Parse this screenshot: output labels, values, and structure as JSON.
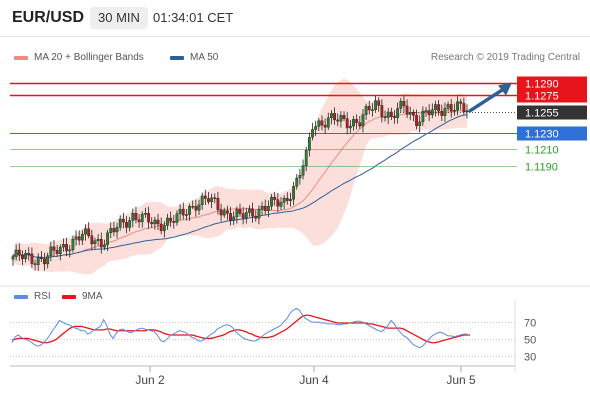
{
  "header": {
    "pair": "EUR/USD",
    "timeframe": "30 MIN",
    "time": "01:34:01 CET"
  },
  "legend": {
    "ma20": "MA 20 + Bollinger Bands",
    "ma50": "MA 50",
    "credit": "Research © 2019 Trading Central",
    "rsi": "RSI",
    "ma9": "9MA"
  },
  "colors": {
    "red_level": "#e8141b",
    "blue_level": "#2e6fd8",
    "green_level": "#2f9e2f",
    "current": "#333333",
    "bollinger": "#f8b9b0",
    "ma20": "#f08a80",
    "ma50": "#2f5f99",
    "up_candle": "#2e7d32",
    "down_candle": "#b71c1c",
    "rsi": "#5c8de0",
    "ma9": "#e8141b",
    "arrow": "#2f5f99"
  },
  "chart_data": [
    {
      "type": "candlestick",
      "ylim": [
        1.1065,
        1.1305
      ],
      "x_tick_labels": [
        "Jun 2",
        "Jun 4",
        "Jun 5"
      ],
      "levels": [
        {
          "value": 1.129,
          "label": "1.1290",
          "style": "resistance-red"
        },
        {
          "value": 1.1275,
          "label": "1.1275",
          "style": "resistance-red"
        },
        {
          "value": 1.1255,
          "label": "1.1255",
          "style": "current-price"
        },
        {
          "value": 1.123,
          "label": "1.1230",
          "style": "pivot-blue"
        },
        {
          "value": 1.121,
          "label": "1.1210",
          "style": "support-green"
        },
        {
          "value": 1.119,
          "label": "1.1190",
          "style": "support-green"
        }
      ],
      "series": [
        {
          "name": "MA 20 + Bollinger Bands",
          "type": "band"
        },
        {
          "name": "MA 50",
          "type": "line"
        }
      ]
    },
    {
      "type": "line",
      "ylim": [
        20,
        90
      ],
      "y_ticks": [
        70,
        50,
        30
      ],
      "series": [
        {
          "name": "RSI",
          "values": [
            46,
            53,
            55,
            52,
            50,
            49,
            47,
            44,
            42,
            43,
            46,
            50,
            55,
            61,
            66,
            72,
            70,
            68,
            67,
            65,
            63,
            62,
            60,
            60,
            56,
            58,
            61,
            63,
            65,
            73,
            66,
            56,
            51,
            57,
            61,
            62,
            60,
            58,
            58,
            60,
            62,
            63,
            62,
            61,
            60,
            59,
            55,
            49,
            47,
            50,
            54,
            56,
            58,
            60,
            59,
            58,
            55,
            52,
            51,
            48,
            48,
            50,
            53,
            56,
            58,
            62,
            64,
            66,
            67,
            66,
            63,
            58,
            55,
            52,
            50,
            49,
            48,
            48,
            50,
            53,
            56,
            58,
            60,
            62,
            64,
            66,
            70,
            74,
            80,
            84,
            86,
            84,
            78,
            74,
            72,
            70,
            70,
            70,
            69,
            69,
            68,
            68,
            68,
            67,
            67,
            68,
            68,
            69,
            70,
            71,
            71,
            70,
            68,
            66,
            64,
            62,
            60,
            59,
            62,
            66,
            72,
            68,
            62,
            58,
            54,
            52,
            48,
            44,
            42,
            40,
            42,
            46,
            50,
            54,
            56,
            58,
            58,
            56,
            54,
            54,
            53,
            54,
            55,
            56,
            56,
            54
          ]
        },
        {
          "name": "9MA",
          "values": [
            49,
            50,
            51,
            51,
            51,
            51,
            50,
            49,
            48,
            47,
            46,
            46,
            47,
            48,
            50,
            53,
            56,
            59,
            62,
            64,
            65,
            65,
            65,
            64,
            63,
            62,
            61,
            61,
            61,
            61,
            62,
            62,
            61,
            60,
            60,
            60,
            60,
            60,
            60,
            60,
            60,
            60,
            60,
            61,
            61,
            61,
            60,
            59,
            57,
            56,
            55,
            55,
            55,
            55,
            55,
            55,
            55,
            55,
            54,
            53,
            52,
            51,
            51,
            51,
            52,
            53,
            54,
            55,
            57,
            59,
            60,
            61,
            61,
            60,
            59,
            57,
            56,
            54,
            53,
            52,
            52,
            52,
            53,
            54,
            56,
            58,
            60,
            62,
            65,
            68,
            71,
            74,
            77,
            78,
            78,
            77,
            76,
            75,
            74,
            73,
            72,
            71,
            70,
            69,
            69,
            69,
            69,
            69,
            69,
            69,
            69,
            69,
            69,
            68,
            68,
            67,
            66,
            65,
            64,
            63,
            63,
            63,
            63,
            63,
            62,
            60,
            58,
            56,
            54,
            52,
            50,
            48,
            47,
            46,
            46,
            47,
            48,
            49,
            50,
            51,
            52,
            53,
            54,
            55,
            55,
            55
          ]
        }
      ]
    }
  ]
}
